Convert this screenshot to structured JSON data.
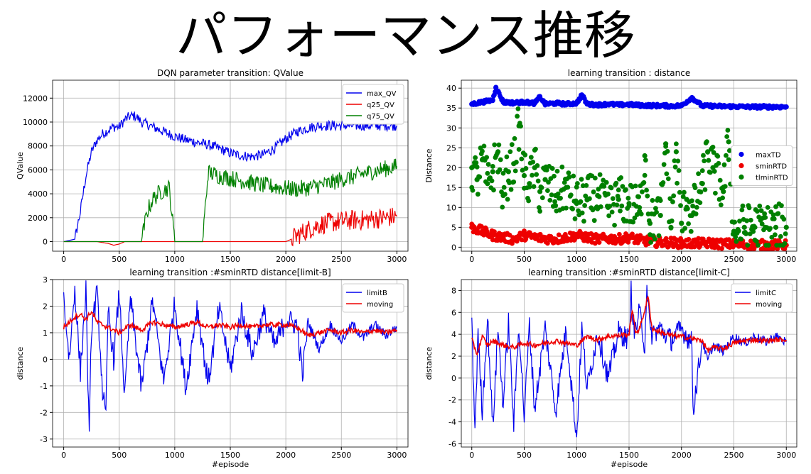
{
  "page": {
    "title": "パフォーマンス推移"
  },
  "colors": {
    "blue": "#0000ee",
    "red": "#ee0000",
    "green": "#008000"
  },
  "chart_data": [
    {
      "id": "qvalue",
      "type": "line",
      "title": "DQN parameter transition: QValue",
      "xlabel": "",
      "ylabel": "QValue",
      "xlim": [
        -100,
        3100
      ],
      "ylim": [
        -800,
        13500
      ],
      "xticks": [
        0,
        500,
        1000,
        1500,
        2000,
        2500,
        3000
      ],
      "yticks": [
        0,
        2000,
        4000,
        6000,
        8000,
        10000,
        12000
      ],
      "grid": true,
      "legend": "top-right",
      "series": [
        {
          "name": "max_QV",
          "color": "#0000ee",
          "x": [
            0,
            100,
            150,
            200,
            250,
            300,
            350,
            400,
            450,
            500,
            550,
            600,
            650,
            700,
            750,
            800,
            900,
            1000,
            1100,
            1200,
            1300,
            1400,
            1500,
            1600,
            1700,
            1800,
            1900,
            2000,
            2100,
            2200,
            2300,
            2400,
            2500,
            2600,
            2700,
            2800,
            2900,
            3000
          ],
          "y": [
            0,
            200,
            2500,
            5500,
            7500,
            8500,
            9000,
            9300,
            9600,
            9600,
            10200,
            10500,
            10500,
            10000,
            9800,
            9600,
            9200,
            8800,
            8500,
            8300,
            8100,
            7800,
            7400,
            7200,
            7100,
            7300,
            7800,
            8600,
            9200,
            9500,
            9700,
            9700,
            9700,
            9700,
            9700,
            9700,
            9700,
            9700
          ]
        },
        {
          "name": "q25_QV",
          "color": "#ee0000",
          "x": [
            0,
            300,
            400,
            450,
            500,
            550,
            1000,
            1500,
            2000,
            2050,
            2100,
            2200,
            2300,
            2400,
            2500,
            2600,
            2700,
            2800,
            2900,
            3000
          ],
          "y": [
            0,
            0,
            -150,
            -300,
            -200,
            0,
            0,
            0,
            0,
            200,
            500,
            1000,
            1400,
            1600,
            1700,
            1800,
            1800,
            1900,
            2000,
            2100
          ]
        },
        {
          "name": "q75_QV",
          "color": "#008000",
          "x": [
            0,
            700,
            750,
            800,
            850,
            900,
            950,
            1000,
            1250,
            1300,
            1400,
            1500,
            1600,
            1700,
            1800,
            1900,
            2000,
            2100,
            2200,
            2300,
            2400,
            2500,
            2600,
            2700,
            2800,
            2900,
            3000
          ],
          "y": [
            0,
            0,
            2500,
            3500,
            4000,
            4300,
            4500,
            0,
            0,
            5800,
            5500,
            5300,
            5100,
            4900,
            4700,
            4600,
            4450,
            4400,
            4500,
            4700,
            4900,
            5200,
            5400,
            5700,
            5900,
            6100,
            6300
          ]
        }
      ]
    },
    {
      "id": "distance",
      "type": "scatter",
      "title": "learning transition : distance",
      "xlabel": "",
      "ylabel": "Distance",
      "xlim": [
        -100,
        3100
      ],
      "ylim": [
        -1,
        42
      ],
      "xticks": [
        0,
        500,
        1000,
        1500,
        2000,
        2500,
        3000
      ],
      "yticks": [
        0,
        5,
        10,
        15,
        20,
        25,
        30,
        35,
        40
      ],
      "grid": true,
      "legend": "center-right",
      "series": [
        {
          "name": "maxTD",
          "color": "#0000ee",
          "x": [
            0,
            100,
            200,
            230,
            300,
            400,
            500,
            600,
            650,
            700,
            800,
            900,
            1000,
            1050,
            1100,
            1200,
            1300,
            1400,
            1500,
            1600,
            1700,
            1800,
            1900,
            2000,
            2100,
            2200,
            2300,
            2400,
            2500,
            2600,
            2700,
            2800,
            2900,
            3000
          ],
          "y": [
            36,
            36.5,
            37,
            40.2,
            36.5,
            36.3,
            36.5,
            36.2,
            37.8,
            36,
            36.2,
            36,
            36.2,
            38.3,
            36,
            35.8,
            36,
            35.8,
            35.9,
            35.7,
            35.6,
            35.6,
            35.5,
            35.6,
            37.6,
            35.5,
            35.5,
            35.4,
            35.4,
            35.3,
            35.3,
            35.3,
            35.3,
            35.3
          ]
        },
        {
          "name": "sminRTD",
          "color": "#ee0000",
          "x": [
            0,
            100,
            200,
            300,
            400,
            500,
            600,
            700,
            800,
            900,
            1000,
            1100,
            1200,
            1300,
            1400,
            1500,
            1600,
            1700,
            1800,
            1900,
            2000,
            2100,
            2200,
            2300,
            2400,
            2500,
            2600,
            2700,
            2800,
            2900,
            3000
          ],
          "y": [
            5,
            4,
            3,
            2.5,
            2,
            3,
            2.5,
            2.2,
            2,
            2.5,
            3,
            2.5,
            2,
            2.2,
            2,
            2.5,
            1.8,
            1.5,
            1.2,
            1.2,
            1,
            1,
            1,
            1,
            0.8,
            0.8,
            0.6,
            0.6,
            0.6,
            0.6,
            0.5
          ]
        },
        {
          "name": "tlminRTD",
          "color": "#008000",
          "x": [
            0,
            50,
            100,
            150,
            200,
            250,
            300,
            350,
            400,
            450,
            500,
            550,
            600,
            650,
            700,
            800,
            900,
            1000,
            1100,
            1200,
            1300,
            1400,
            1500,
            1600,
            1650,
            1700,
            1800,
            1850,
            1900,
            1950,
            2000,
            2050,
            2100,
            2200,
            2250,
            2300,
            2400,
            2450,
            2500,
            2600,
            2700,
            2800,
            2900,
            3000
          ],
          "y": [
            20,
            17,
            22,
            16,
            19,
            24,
            13,
            19,
            21,
            30.5,
            18,
            16,
            20,
            14,
            17,
            13,
            15,
            11,
            12,
            13,
            10,
            12,
            11,
            9,
            23,
            6,
            8,
            26,
            5,
            24,
            6,
            12,
            8,
            16,
            24,
            20,
            14,
            26.5,
            4,
            5,
            5,
            5,
            5,
            5
          ]
        }
      ]
    },
    {
      "id": "limitB",
      "type": "line",
      "title": "learning transition :#sminRTD distance[limit-B]",
      "xlabel": "#episode",
      "ylabel": "distance",
      "xlim": [
        -100,
        3100
      ],
      "ylim": [
        -3.3,
        3.0
      ],
      "xticks": [
        0,
        500,
        1000,
        1500,
        2000,
        2500,
        3000
      ],
      "yticks": [
        -3,
        -2,
        -1,
        0,
        1,
        2,
        3
      ],
      "grid": true,
      "legend": "top-right",
      "series": [
        {
          "name": "limitB",
          "color": "#0000ee",
          "x": [
            0,
            50,
            100,
            150,
            200,
            230,
            250,
            300,
            350,
            380,
            400,
            450,
            500,
            550,
            600,
            700,
            800,
            900,
            1000,
            1100,
            1200,
            1300,
            1400,
            1500,
            1600,
            1700,
            1800,
            1900,
            2000,
            2100,
            2150,
            2200,
            2300,
            2400,
            2500,
            2600,
            2700,
            2800,
            2900,
            3000
          ],
          "y": [
            2.3,
            0,
            2.7,
            -0.5,
            2.6,
            -3.05,
            1.2,
            2.5,
            -1.2,
            -2.3,
            1.9,
            0,
            2.5,
            -1.5,
            2.3,
            -1.1,
            2.2,
            -0.8,
            2.1,
            -1.1,
            2.0,
            -0.9,
            1.9,
            -0.4,
            1.8,
            0.2,
            1.7,
            0.5,
            1.5,
            1.3,
            -0.6,
            1.4,
            0.4,
            1.3,
            0.7,
            1.3,
            0.8,
            1.3,
            0.9,
            1.2
          ]
        },
        {
          "name": "moving",
          "color": "#ee0000",
          "x": [
            0,
            100,
            150,
            200,
            250,
            300,
            400,
            500,
            600,
            700,
            800,
            900,
            1000,
            1100,
            1200,
            1300,
            1400,
            1500,
            1600,
            1700,
            1800,
            1900,
            2000,
            2100,
            2200,
            2300,
            2400,
            2500,
            2600,
            2700,
            2800,
            2900,
            3000
          ],
          "y": [
            1.2,
            1.6,
            1.7,
            1.5,
            1.8,
            1.4,
            1.2,
            1.0,
            1.3,
            1.1,
            1.4,
            1.3,
            1.2,
            1.3,
            1.4,
            1.2,
            1.3,
            1.2,
            1.3,
            1.2,
            1.3,
            1.3,
            1.3,
            1.2,
            0.9,
            1.0,
            1.1,
            1.0,
            1.1,
            1.0,
            1.1,
            1.0,
            1.1
          ]
        }
      ]
    },
    {
      "id": "limitC",
      "type": "line",
      "title": "learning transition :#sminRTD distance[limit-C]",
      "xlabel": "#episode",
      "ylabel": "distance",
      "xlim": [
        -100,
        3100
      ],
      "ylim": [
        -6.3,
        9.0
      ],
      "xticks": [
        0,
        500,
        1000,
        1500,
        2000,
        2500,
        3000
      ],
      "yticks": [
        -6,
        -4,
        -2,
        0,
        2,
        4,
        6,
        8
      ],
      "grid": true,
      "legend": "top-right",
      "series": [
        {
          "name": "limitC",
          "color": "#0000ee",
          "x": [
            0,
            30,
            60,
            100,
            150,
            200,
            250,
            300,
            350,
            400,
            450,
            500,
            550,
            600,
            700,
            800,
            900,
            1000,
            1050,
            1100,
            1200,
            1300,
            1400,
            1500,
            1520,
            1550,
            1600,
            1650,
            1670,
            1700,
            1800,
            1900,
            2000,
            2100,
            2110,
            2200,
            2250,
            2300,
            2400,
            2500,
            2600,
            2700,
            2800,
            2900,
            3000
          ],
          "y": [
            5,
            -4.8,
            4,
            -3,
            5.5,
            -4.5,
            4.5,
            -2.5,
            5.2,
            -4.2,
            5,
            -3.5,
            4.8,
            -2.8,
            4.6,
            -3.0,
            4.5,
            -5.5,
            4.5,
            -1,
            4.2,
            0,
            4.2,
            3.5,
            8,
            4,
            6,
            3,
            8.8,
            4,
            4.5,
            3.5,
            4.5,
            3.2,
            -3,
            3.5,
            1.5,
            3,
            2.5,
            3.8,
            3.2,
            3.8,
            3.3,
            3.8,
            3.3
          ]
        },
        {
          "name": "moving",
          "color": "#ee0000",
          "x": [
            0,
            50,
            100,
            150,
            200,
            300,
            400,
            500,
            600,
            700,
            800,
            900,
            1000,
            1100,
            1200,
            1300,
            1400,
            1500,
            1530,
            1560,
            1600,
            1650,
            1680,
            1720,
            1800,
            1900,
            2000,
            2100,
            2200,
            2250,
            2300,
            2400,
            2500,
            2600,
            2700,
            2800,
            2900,
            3000
          ],
          "y": [
            3.5,
            2.2,
            3.8,
            3.0,
            3.4,
            3.0,
            2.8,
            3.2,
            3.0,
            3.2,
            3.4,
            3.2,
            3.0,
            3.8,
            3.5,
            3.8,
            3.9,
            4.0,
            6.3,
            4.2,
            4.5,
            6.2,
            7.5,
            4.5,
            4.2,
            3.9,
            3.8,
            3.6,
            3.4,
            2.5,
            2.8,
            2.7,
            3.2,
            3.4,
            3.5,
            3.4,
            3.5,
            3.5
          ]
        }
      ]
    }
  ]
}
